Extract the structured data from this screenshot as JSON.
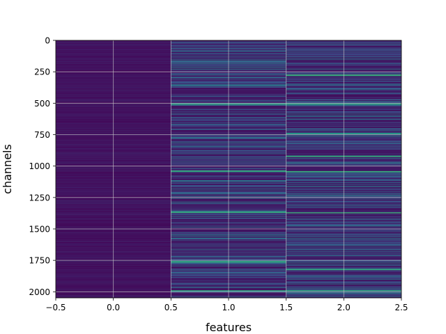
{
  "chart_data": {
    "type": "heatmap",
    "title": "",
    "xlabel": "features",
    "ylabel": "channels",
    "xlim": [
      -0.5,
      2.5
    ],
    "ylim": [
      2048,
      0
    ],
    "y_inverted": true,
    "grid": true,
    "colormap": "viridis",
    "columns": [
      {
        "x": 0,
        "description_level": "low",
        "mean_value": 0.06
      },
      {
        "x": 1,
        "description_level": "medium-high",
        "mean_value": 0.3
      },
      {
        "x": 2,
        "description_level": "medium-high",
        "mean_value": 0.3
      }
    ],
    "rows": 2048,
    "x_ticks": [
      {
        "value": -0.5,
        "label": "−0.5"
      },
      {
        "value": 0.0,
        "label": "0.0"
      },
      {
        "value": 0.5,
        "label": "0.5"
      },
      {
        "value": 1.0,
        "label": "1.0"
      },
      {
        "value": 1.5,
        "label": "1.5"
      },
      {
        "value": 2.0,
        "label": "2.0"
      },
      {
        "value": 2.5,
        "label": "2.5"
      }
    ],
    "y_ticks": [
      {
        "value": 0,
        "label": "0"
      },
      {
        "value": 250,
        "label": "250"
      },
      {
        "value": 500,
        "label": "500"
      },
      {
        "value": 750,
        "label": "750"
      },
      {
        "value": 1000,
        "label": "1000"
      },
      {
        "value": 1250,
        "label": "1250"
      },
      {
        "value": 1500,
        "label": "1500"
      },
      {
        "value": 1750,
        "label": "1750"
      },
      {
        "value": 2000,
        "label": "2000"
      }
    ],
    "highlight_rows": {
      "col1": [
        505,
        1040,
        1365,
        1760,
        1990
      ],
      "col2": [
        275,
        505,
        740,
        920,
        1045,
        1370,
        1820,
        1990
      ]
    }
  }
}
